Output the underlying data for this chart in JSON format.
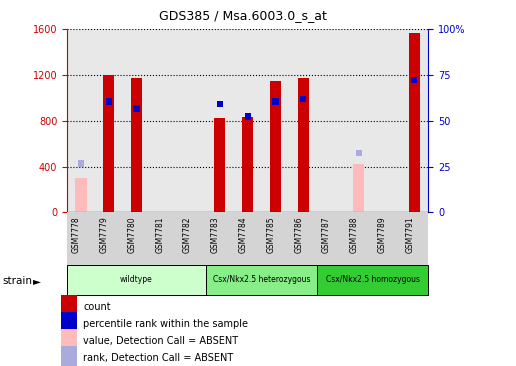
{
  "title": "GDS385 / Msa.6003.0_s_at",
  "samples": [
    "GSM7778",
    "GSM7779",
    "GSM7780",
    "GSM7781",
    "GSM7782",
    "GSM7783",
    "GSM7784",
    "GSM7785",
    "GSM7786",
    "GSM7787",
    "GSM7788",
    "GSM7789",
    "GSM7791"
  ],
  "count_values": [
    null,
    1200,
    1170,
    null,
    null,
    820,
    830,
    1150,
    1170,
    null,
    null,
    null,
    1570
  ],
  "rank_values": [
    null,
    940,
    880,
    null,
    null,
    920,
    810,
    940,
    960,
    null,
    null,
    null,
    1130
  ],
  "absent_count": [
    300,
    null,
    null,
    null,
    null,
    null,
    null,
    null,
    null,
    null,
    420,
    null,
    null
  ],
  "absent_rank": [
    400,
    null,
    null,
    null,
    null,
    null,
    null,
    null,
    null,
    null,
    490,
    null,
    null
  ],
  "ylim_left": [
    0,
    1600
  ],
  "ylim_right": [
    0,
    100
  ],
  "yticks_left": [
    0,
    400,
    800,
    1200,
    1600
  ],
  "yticks_right": [
    0,
    25,
    50,
    75,
    100
  ],
  "ytick_labels_right": [
    "0",
    "25",
    "50",
    "75",
    "100%"
  ],
  "strain_groups": [
    {
      "label": "wildtype",
      "start": 0,
      "end": 5,
      "color": "#ccffcc"
    },
    {
      "label": "Csx/Nkx2.5 heterozygous",
      "start": 5,
      "end": 9,
      "color": "#88ee88"
    },
    {
      "label": "Csx/Nkx2.5 homozygous",
      "start": 9,
      "end": 13,
      "color": "#33cc33"
    }
  ],
  "bar_width": 0.4,
  "absent_bar_color": "#ffbbbb",
  "absent_rank_color": "#aaaadd",
  "count_color": "#cc0000",
  "rank_color": "#0000cc",
  "plot_bg_color": "#e8e8e8",
  "left_axis_color": "#cc0000",
  "right_axis_color": "#0000cc",
  "legend_items": [
    {
      "color": "#cc0000",
      "label": "count"
    },
    {
      "color": "#0000cc",
      "label": "percentile rank within the sample"
    },
    {
      "color": "#ffbbbb",
      "label": "value, Detection Call = ABSENT"
    },
    {
      "color": "#aaaadd",
      "label": "rank, Detection Call = ABSENT"
    }
  ]
}
